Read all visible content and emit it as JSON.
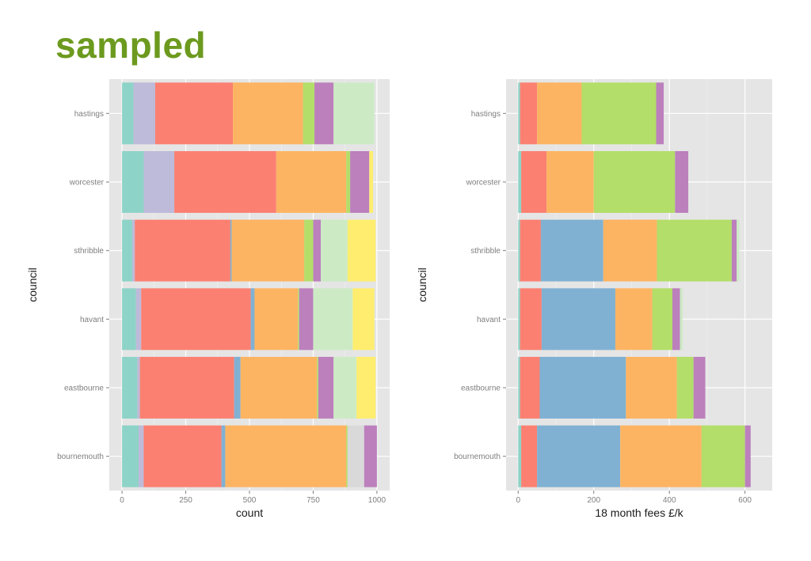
{
  "slide": {
    "title": "sampled"
  },
  "palette": {
    "panel_bg": "#e5e5e5",
    "gridline": "#ffffff",
    "segment_colors": [
      "#8ed3c7",
      "#bebada",
      "#fb8072",
      "#80b1d3",
      "#fdb462",
      "#b3de69",
      "#bc80bd",
      "#ccebc5",
      "#ffed6f",
      "#d9d9d9"
    ]
  },
  "chart_data": [
    {
      "type": "bar",
      "orientation": "horizontal",
      "stacked": true,
      "xlabel": "count",
      "ylabel": "council",
      "xlim": [
        0,
        1000
      ],
      "xticks": [
        0,
        250,
        500,
        750,
        1000
      ],
      "grid": true,
      "categories": [
        "hastings",
        "worcester",
        "sthribble",
        "havant",
        "eastbourne",
        "bournemouth"
      ],
      "segments": [
        [
          [
            0,
            45,
            0
          ],
          [
            45,
            130,
            1
          ],
          [
            130,
            435,
            2
          ],
          [
            435,
            710,
            4
          ],
          [
            710,
            755,
            5
          ],
          [
            755,
            830,
            6
          ],
          [
            830,
            990,
            7
          ]
        ],
        [
          [
            0,
            85,
            0
          ],
          [
            85,
            205,
            1
          ],
          [
            205,
            605,
            2
          ],
          [
            605,
            880,
            4
          ],
          [
            880,
            895,
            5
          ],
          [
            895,
            970,
            6
          ],
          [
            970,
            985,
            8
          ]
        ],
        [
          [
            0,
            40,
            0
          ],
          [
            40,
            50,
            1
          ],
          [
            50,
            425,
            2
          ],
          [
            425,
            430,
            3
          ],
          [
            430,
            715,
            4
          ],
          [
            715,
            750,
            5
          ],
          [
            750,
            780,
            6
          ],
          [
            780,
            885,
            7
          ],
          [
            885,
            995,
            8
          ]
        ],
        [
          [
            0,
            55,
            0
          ],
          [
            55,
            75,
            1
          ],
          [
            75,
            505,
            2
          ],
          [
            505,
            520,
            3
          ],
          [
            520,
            690,
            4
          ],
          [
            690,
            695,
            5
          ],
          [
            695,
            750,
            6
          ],
          [
            750,
            905,
            7
          ],
          [
            905,
            990,
            8
          ]
        ],
        [
          [
            0,
            60,
            0
          ],
          [
            60,
            70,
            1
          ],
          [
            70,
            440,
            2
          ],
          [
            440,
            465,
            3
          ],
          [
            465,
            765,
            4
          ],
          [
            765,
            770,
            5
          ],
          [
            770,
            830,
            6
          ],
          [
            830,
            920,
            7
          ],
          [
            920,
            995,
            8
          ]
        ],
        [
          [
            0,
            65,
            0
          ],
          [
            65,
            85,
            1
          ],
          [
            85,
            390,
            2
          ],
          [
            390,
            405,
            3
          ],
          [
            405,
            880,
            4
          ],
          [
            880,
            885,
            5
          ],
          [
            885,
            950,
            9
          ],
          [
            950,
            1000,
            6
          ]
        ]
      ]
    },
    {
      "type": "bar",
      "orientation": "horizontal",
      "stacked": true,
      "xlabel": "18 month fees £/k",
      "ylabel": "council",
      "xlim": [
        0,
        640
      ],
      "xticks": [
        0,
        200,
        400,
        600
      ],
      "grid": true,
      "categories": [
        "hastings",
        "worcester",
        "sthribble",
        "havant",
        "eastbourne",
        "bournemouth"
      ],
      "segments": [
        [
          [
            0,
            5,
            0
          ],
          [
            5,
            50,
            2
          ],
          [
            50,
            168,
            4
          ],
          [
            168,
            365,
            5
          ],
          [
            365,
            385,
            6
          ]
        ],
        [
          [
            0,
            8,
            0
          ],
          [
            8,
            75,
            2
          ],
          [
            75,
            200,
            4
          ],
          [
            200,
            415,
            5
          ],
          [
            415,
            450,
            6
          ]
        ],
        [
          [
            0,
            5,
            0
          ],
          [
            5,
            60,
            2
          ],
          [
            60,
            225,
            3
          ],
          [
            225,
            367,
            4
          ],
          [
            367,
            565,
            5
          ],
          [
            565,
            578,
            6
          ],
          [
            578,
            585,
            7
          ]
        ],
        [
          [
            0,
            5,
            0
          ],
          [
            5,
            62,
            2
          ],
          [
            62,
            257,
            3
          ],
          [
            257,
            355,
            4
          ],
          [
            355,
            408,
            5
          ],
          [
            408,
            428,
            6
          ],
          [
            428,
            435,
            7
          ]
        ],
        [
          [
            0,
            5,
            0
          ],
          [
            5,
            57,
            2
          ],
          [
            57,
            285,
            3
          ],
          [
            285,
            420,
            4
          ],
          [
            420,
            464,
            5
          ],
          [
            464,
            495,
            6
          ]
        ],
        [
          [
            0,
            8,
            0
          ],
          [
            8,
            50,
            2
          ],
          [
            50,
            270,
            3
          ],
          [
            270,
            485,
            4
          ],
          [
            485,
            600,
            5
          ],
          [
            600,
            615,
            6
          ]
        ]
      ]
    }
  ]
}
